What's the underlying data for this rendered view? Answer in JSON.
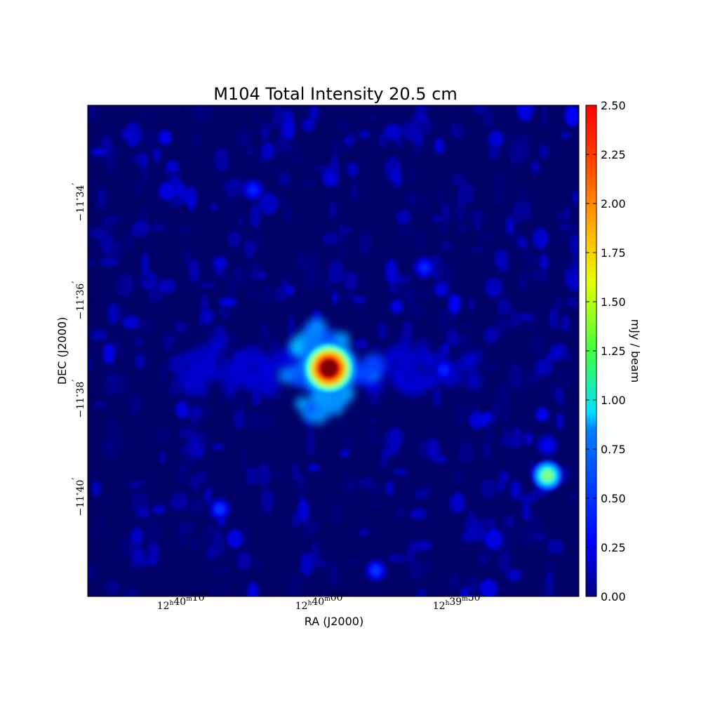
{
  "chart_data": {
    "type": "heatmap",
    "title": "M104 Total Intensity 20.5 cm",
    "xlabel": "RA (J2000)",
    "ylabel": "DEC (J2000)",
    "colorbar_label": "mJy / beam",
    "colormap": "jet",
    "value_range": [
      0.0,
      2.5
    ],
    "colorbar_ticks": [
      "0.00",
      "0.25",
      "0.50",
      "0.75",
      "1.00",
      "1.25",
      "1.50",
      "1.75",
      "2.00",
      "2.25",
      "2.50"
    ],
    "x_ticks": [
      {
        "h": "12",
        "m": "40",
        "s": "10"
      },
      {
        "h": "12",
        "m": "40",
        "s": "00"
      },
      {
        "h": "12",
        "m": "39",
        "s": "50"
      }
    ],
    "y_ticks": [
      {
        "deg": "-11",
        "min": "34"
      },
      {
        "deg": "-11",
        "min": "36"
      },
      {
        "deg": "-11",
        "min": "38"
      },
      {
        "deg": "-11",
        "min": "40"
      }
    ],
    "sources": [
      {
        "ra": "12h39m59.4s",
        "dec": "-11°37'23\"",
        "peak": 2.5
      },
      {
        "ra": "12h39m43.6s",
        "dec": "-11°39'34\"",
        "peak": 1.25
      },
      {
        "ra": "12h40m07.3s",
        "dec": "-11°40'15\"",
        "peak": 0.45
      },
      {
        "ra": "12h39m56.0s",
        "dec": "-11°41'30\"",
        "peak": 0.45
      },
      {
        "ra": "12h40m04.9s",
        "dec": "-11°33'45\"",
        "peak": 0.4
      },
      {
        "ra": "12h39m52.5s",
        "dec": "-11°35'20\"",
        "peak": 0.4
      },
      {
        "ra": "12h39m51.1s",
        "dec": "-11°37'25\"",
        "peak": 0.4
      },
      {
        "ra": "12h39m43.6s",
        "dec": "-11°38'57\"",
        "peak": 0.3
      }
    ]
  }
}
